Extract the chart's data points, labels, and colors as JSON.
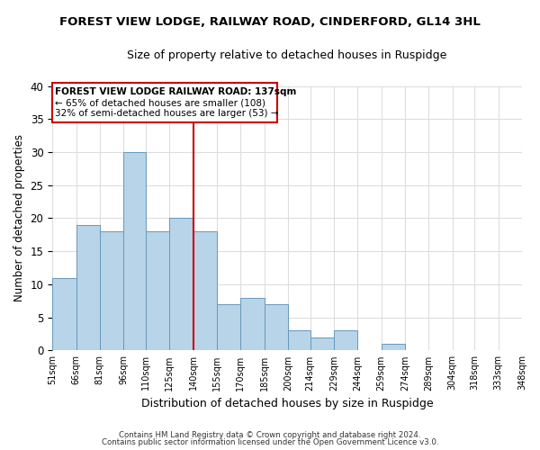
{
  "title": "FOREST VIEW LODGE, RAILWAY ROAD, CINDERFORD, GL14 3HL",
  "subtitle": "Size of property relative to detached houses in Ruspidge",
  "xlabel": "Distribution of detached houses by size in Ruspidge",
  "ylabel": "Number of detached properties",
  "bin_edges": [
    51,
    66,
    81,
    96,
    110,
    125,
    140,
    155,
    170,
    185,
    200,
    214,
    229,
    244,
    259,
    274,
    289,
    304,
    318,
    333,
    348
  ],
  "bar_heights": [
    11,
    19,
    18,
    30,
    18,
    20,
    18,
    7,
    8,
    7,
    3,
    2,
    3,
    0,
    1,
    0,
    0,
    0,
    0,
    0
  ],
  "tick_labels": [
    "51sqm",
    "66sqm",
    "81sqm",
    "96sqm",
    "110sqm",
    "125sqm",
    "140sqm",
    "155sqm",
    "170sqm",
    "185sqm",
    "200sqm",
    "214sqm",
    "229sqm",
    "244sqm",
    "259sqm",
    "274sqm",
    "289sqm",
    "304sqm",
    "318sqm",
    "333sqm",
    "348sqm"
  ],
  "bar_color": "#b8d4e8",
  "bar_edge_color": "#6699bb",
  "vline_x": 140,
  "vline_color": "#cc0000",
  "ylim": [
    0,
    40
  ],
  "yticks": [
    0,
    5,
    10,
    15,
    20,
    25,
    30,
    35,
    40
  ],
  "annotation_title": "FOREST VIEW LODGE RAILWAY ROAD: 137sqm",
  "annotation_line1": "← 65% of detached houses are smaller (108)",
  "annotation_line2": "32% of semi-detached houses are larger (53) →",
  "footer1": "Contains HM Land Registry data © Crown copyright and database right 2024.",
  "footer2": "Contains public sector information licensed under the Open Government Licence v3.0.",
  "background_color": "#ffffff",
  "grid_color": "#dddddd"
}
